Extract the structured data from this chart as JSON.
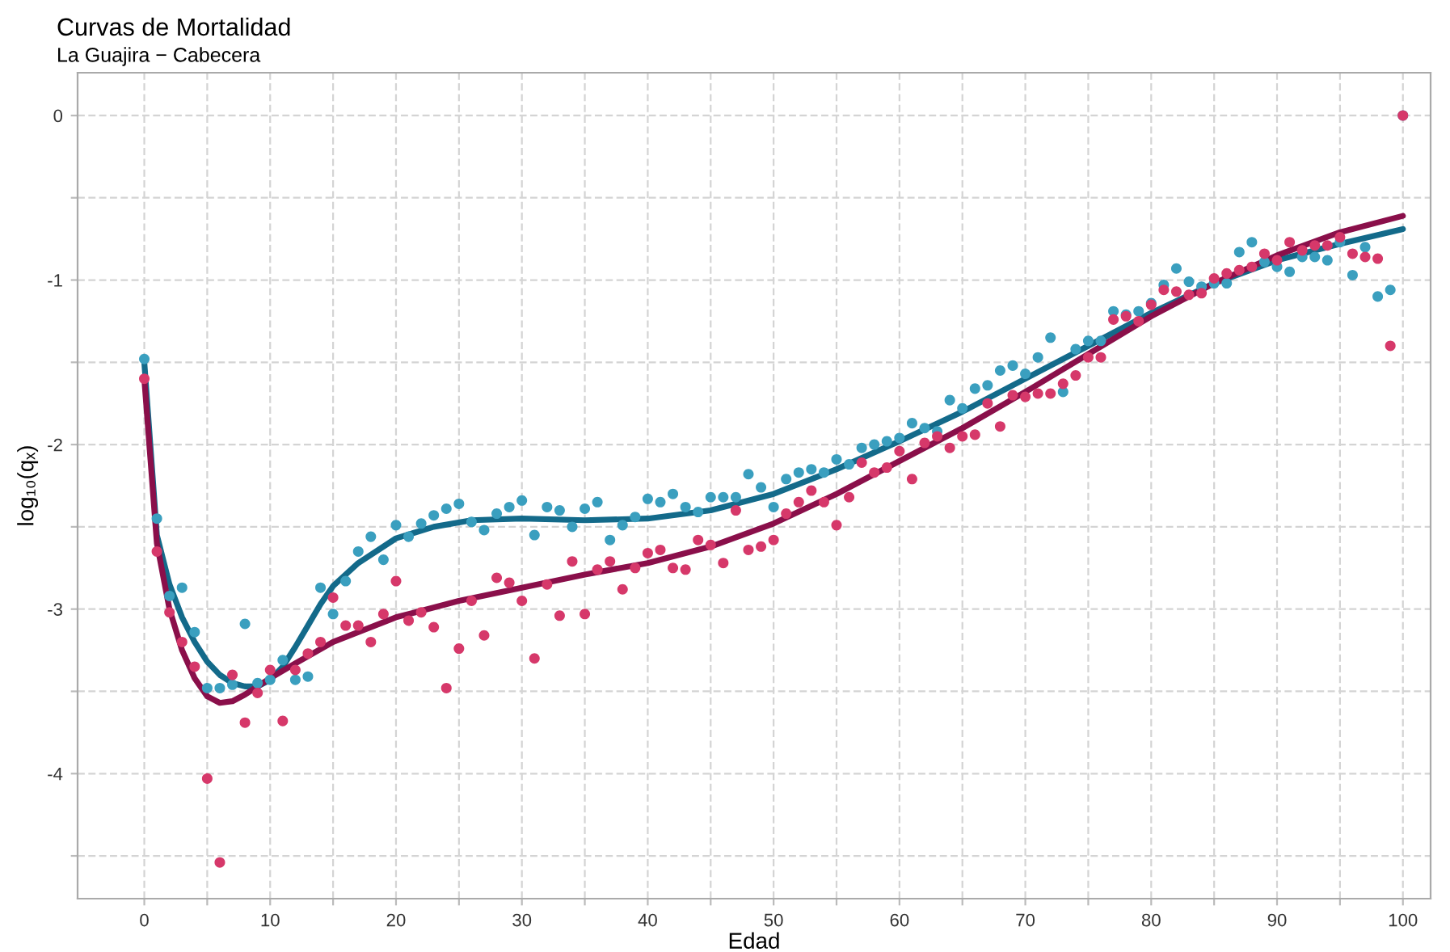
{
  "chart_data": {
    "type": "scatter",
    "title": "Curvas de Mortalidad",
    "subtitle": "La Guajira − Cabecera",
    "xlabel": "Edad",
    "ylabel": "log₁₀(qₓ)",
    "xlim": [
      -5.3,
      102.2
    ],
    "ylim": [
      -4.76,
      0.26
    ],
    "xticks": [
      0,
      {
        "value": 5,
        "label": null
      },
      10,
      {
        "value": 15,
        "label": null
      },
      20,
      {
        "value": 25,
        "label": null
      },
      30,
      {
        "value": 35,
        "label": null
      },
      40,
      {
        "value": 45,
        "label": null
      },
      50,
      {
        "value": 55,
        "label": null
      },
      60,
      {
        "value": 65,
        "label": null
      },
      70,
      {
        "value": 75,
        "label": null
      },
      80,
      {
        "value": 85,
        "label": null
      },
      90,
      {
        "value": 95,
        "label": null
      },
      100
    ],
    "yticks": [
      {
        "value": -4.5,
        "label": null
      },
      -4,
      {
        "value": -3.5,
        "label": null
      },
      -3,
      {
        "value": -2.5,
        "label": null
      },
      -2,
      {
        "value": -1.5,
        "label": null
      },
      -1,
      {
        "value": -0.5,
        "label": null
      },
      0
    ],
    "grid": true,
    "marker": "circle",
    "series": [
      {
        "color": "#3a9fbf",
        "x": [
          0,
          1,
          2,
          3,
          4,
          5,
          6,
          7,
          8,
          9,
          10,
          11,
          12,
          13,
          14,
          15,
          16,
          17,
          18,
          19,
          20,
          21,
          22,
          23,
          24,
          25,
          26,
          27,
          28,
          29,
          30,
          31,
          32,
          33,
          34,
          35,
          36,
          37,
          38,
          39,
          40,
          41,
          42,
          43,
          44,
          45,
          46,
          47,
          48,
          49,
          50,
          51,
          52,
          53,
          54,
          55,
          56,
          57,
          58,
          59,
          60,
          61,
          62,
          63,
          64,
          65,
          66,
          67,
          68,
          69,
          70,
          71,
          72,
          73,
          74,
          75,
          76,
          77,
          78,
          79,
          80,
          81,
          82,
          83,
          84,
          85,
          86,
          87,
          88,
          89,
          90,
          91,
          92,
          93,
          94,
          95,
          96,
          97,
          98,
          99,
          100
        ],
        "values": [
          -1.48,
          -2.45,
          -2.92,
          -2.87,
          -3.14,
          -3.48,
          -3.48,
          -3.46,
          -3.09,
          -3.45,
          -3.43,
          -3.31,
          -3.43,
          -3.41,
          -2.87,
          -3.03,
          -2.83,
          -2.65,
          -2.56,
          -2.7,
          -2.49,
          -2.56,
          -2.48,
          -2.43,
          -2.39,
          -2.36,
          -2.47,
          -2.52,
          -2.42,
          -2.38,
          -2.34,
          -2.55,
          -2.38,
          -2.4,
          -2.5,
          -2.39,
          -2.35,
          -2.58,
          -2.49,
          -2.44,
          -2.33,
          -2.35,
          -2.3,
          -2.38,
          -2.41,
          -2.32,
          -2.32,
          -2.32,
          -2.18,
          -2.26,
          -2.38,
          -2.21,
          -2.17,
          -2.15,
          -2.17,
          -2.09,
          -2.12,
          -2.02,
          -2.0,
          -1.98,
          -1.96,
          -1.87,
          -1.9,
          -1.92,
          -1.73,
          -1.78,
          -1.66,
          -1.64,
          -1.55,
          -1.52,
          -1.57,
          -1.47,
          -1.35,
          -1.68,
          -1.42,
          -1.37,
          -1.37,
          -1.19,
          -1.21,
          -1.19,
          -1.14,
          -1.03,
          -0.93,
          -1.01,
          -1.04,
          -1.02,
          -1.02,
          -0.83,
          -0.77,
          -0.89,
          -0.92,
          -0.95,
          -0.86,
          -0.86,
          -0.88,
          -0.77,
          -0.97,
          -0.8,
          -1.1,
          -1.06,
          0
        ]
      },
      {
        "color": "#d6386a",
        "x": [
          0,
          1,
          2,
          3,
          4,
          5,
          6,
          7,
          8,
          9,
          10,
          11,
          12,
          13,
          14,
          15,
          16,
          17,
          18,
          19,
          20,
          21,
          22,
          23,
          24,
          25,
          26,
          27,
          28,
          29,
          30,
          31,
          32,
          33,
          34,
          35,
          36,
          37,
          38,
          39,
          40,
          41,
          42,
          43,
          44,
          45,
          46,
          47,
          48,
          49,
          50,
          51,
          52,
          53,
          54,
          55,
          56,
          57,
          58,
          59,
          60,
          61,
          62,
          63,
          64,
          65,
          66,
          67,
          68,
          69,
          70,
          71,
          72,
          73,
          74,
          75,
          76,
          77,
          78,
          79,
          80,
          81,
          82,
          83,
          84,
          85,
          86,
          87,
          88,
          89,
          90,
          91,
          92,
          93,
          94,
          95,
          96,
          97,
          98,
          99,
          100
        ],
        "values": [
          -1.6,
          -2.65,
          -3.02,
          -3.2,
          -3.35,
          -4.03,
          -4.54,
          -3.4,
          -3.69,
          -3.51,
          -3.37,
          -3.68,
          -3.37,
          -3.27,
          -3.2,
          -2.93,
          -3.1,
          -3.1,
          -3.2,
          -3.03,
          -2.83,
          -3.07,
          -3.02,
          -3.11,
          -3.48,
          -3.24,
          -2.95,
          -3.16,
          -2.81,
          -2.84,
          -2.95,
          -3.3,
          -2.85,
          -3.04,
          -2.71,
          -3.03,
          -2.76,
          -2.71,
          -2.88,
          -2.75,
          -2.66,
          -2.64,
          -2.75,
          -2.76,
          -2.58,
          -2.61,
          -2.72,
          -2.4,
          -2.64,
          -2.62,
          -2.58,
          -2.42,
          -2.35,
          -2.28,
          -2.35,
          -2.49,
          -2.32,
          -2.11,
          -2.17,
          -2.14,
          -2.04,
          -2.21,
          -1.99,
          -1.95,
          -2.02,
          -1.95,
          -1.94,
          -1.75,
          -1.89,
          -1.7,
          -1.71,
          -1.69,
          -1.69,
          -1.63,
          -1.58,
          -1.47,
          -1.47,
          -1.24,
          -1.22,
          -1.25,
          -1.15,
          -1.06,
          -1.07,
          -1.09,
          -1.08,
          -0.99,
          -0.96,
          -0.94,
          -0.92,
          -0.84,
          -0.88,
          -0.77,
          -0.82,
          -0.79,
          -0.79,
          -0.74,
          -0.84,
          -0.86,
          -0.87,
          -1.4,
          0
        ]
      },
      {
        "type": "line",
        "color": "#136a8a",
        "marker": "none",
        "x": [
          0,
          1,
          2,
          3,
          4,
          5,
          6,
          7,
          8,
          9,
          10,
          11,
          12,
          13,
          14,
          15,
          17,
          20,
          23,
          26,
          30,
          35,
          40,
          45,
          50,
          55,
          60,
          65,
          70,
          75,
          80,
          85,
          90,
          95,
          100
        ],
        "values": [
          -1.5,
          -2.55,
          -2.85,
          -3.05,
          -3.2,
          -3.32,
          -3.4,
          -3.45,
          -3.47,
          -3.47,
          -3.43,
          -3.35,
          -3.23,
          -3.1,
          -2.97,
          -2.86,
          -2.72,
          -2.57,
          -2.5,
          -2.46,
          -2.45,
          -2.46,
          -2.45,
          -2.4,
          -2.3,
          -2.15,
          -1.98,
          -1.8,
          -1.6,
          -1.4,
          -1.2,
          -1.02,
          -0.88,
          -0.78,
          -0.69
        ]
      },
      {
        "type": "line",
        "color": "#8a0f4a",
        "marker": "none",
        "x": [
          0,
          1,
          2,
          3,
          4,
          5,
          6,
          7,
          8,
          9,
          10,
          12,
          15,
          20,
          25,
          30,
          35,
          40,
          45,
          50,
          55,
          60,
          65,
          70,
          75,
          80,
          85,
          90,
          95,
          100
        ],
        "values": [
          -1.6,
          -2.6,
          -3.0,
          -3.25,
          -3.42,
          -3.53,
          -3.57,
          -3.56,
          -3.52,
          -3.47,
          -3.42,
          -3.33,
          -3.2,
          -3.05,
          -2.95,
          -2.87,
          -2.79,
          -2.72,
          -2.62,
          -2.48,
          -2.3,
          -2.1,
          -1.9,
          -1.68,
          -1.45,
          -1.22,
          -1.02,
          -0.85,
          -0.71,
          -0.61
        ]
      }
    ]
  }
}
